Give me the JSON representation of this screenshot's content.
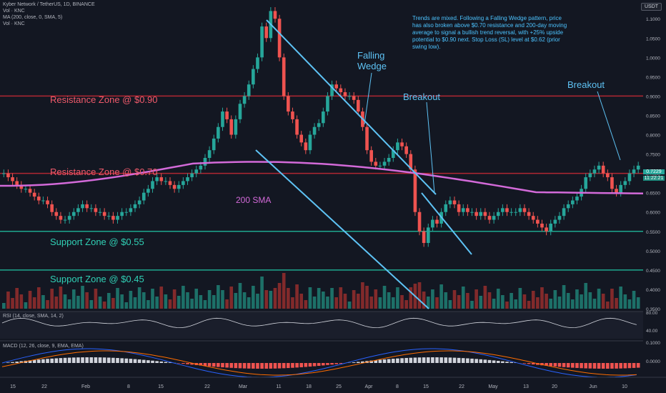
{
  "header": {
    "title": "Kyber Network / TetherUS, 1D, BINANCE",
    "vol": "Vol · KNC",
    "ma": "MA (200, close, 0, SMA, 5)",
    "vol2": "Vol · KNC"
  },
  "currency": "USDT",
  "note": "Trends are mixed. Following a Falling Wedge pattern, price has also broken above $0.70 resistance and 200-day moving average to signal a bullish trend reversal, with +25% upside potential to $0.90 next. Stop Loss (SL) level at $0.62 (prior swing low).",
  "annotations": {
    "falling_wedge_1": "Falling",
    "falling_wedge_2": "Wedge",
    "breakout_1": "Breakout",
    "breakout_2": "Breakout",
    "sma_label": "200 SMA"
  },
  "zones": {
    "res_090": "Resistance Zone @ $0.90",
    "res_070": "Resistance Zone @ $0.70",
    "sup_055": "Support Zone @ $0.55",
    "sup_045": "Support Zone @ $0.45"
  },
  "price_badge": {
    "price": "0.7229",
    "time": "11:22:21"
  },
  "rsi": {
    "label": "RSI (14, close, SMA, 14, 2)",
    "ticks": [
      "80.00",
      "40.00"
    ]
  },
  "macd": {
    "label": "MACD (12, 26, close, 9, EMA, EMA)",
    "ticks": [
      "0.1000",
      "0.0000"
    ]
  },
  "colors": {
    "up": "#26a69a",
    "down": "#ef5350",
    "sma": "#d36ad9",
    "wedge": "#5ec3f5",
    "res": "#b22833",
    "sup": "#1ea88f"
  },
  "chart_data": {
    "type": "candlestick",
    "y_axis_ticks": [
      "1.1000",
      "1.0500",
      "1.0000",
      "0.9500",
      "0.9000",
      "0.8500",
      "0.8000",
      "0.7500",
      "0.7000",
      "0.6500",
      "0.6000",
      "0.5500",
      "0.5000",
      "0.4500",
      "0.4000",
      "0.3500"
    ],
    "ylim": [
      0.35,
      1.13
    ],
    "x_axis_ticks": [
      "15",
      "22",
      "Feb",
      "8",
      "15",
      "22",
      "Mar",
      "11",
      "18",
      "25",
      "Apr",
      "8",
      "15",
      "22",
      "May",
      "13",
      "20",
      "Jun",
      "10"
    ],
    "horizontal_levels": [
      0.9,
      0.7,
      0.55,
      0.45
    ],
    "sma200_value_approx": 0.7,
    "last_price": 0.7229,
    "closes": [
      0.7,
      0.69,
      0.68,
      0.67,
      0.66,
      0.66,
      0.65,
      0.64,
      0.63,
      0.63,
      0.62,
      0.6,
      0.59,
      0.58,
      0.58,
      0.59,
      0.6,
      0.61,
      0.62,
      0.61,
      0.61,
      0.6,
      0.6,
      0.59,
      0.59,
      0.58,
      0.59,
      0.6,
      0.6,
      0.61,
      0.62,
      0.63,
      0.65,
      0.66,
      0.68,
      0.69,
      0.68,
      0.68,
      0.67,
      0.66,
      0.67,
      0.68,
      0.69,
      0.7,
      0.71,
      0.72,
      0.74,
      0.76,
      0.79,
      0.82,
      0.86,
      0.84,
      0.8,
      0.84,
      0.88,
      0.9,
      0.93,
      0.97,
      1.0,
      1.08,
      1.05,
      1.12,
      1.1,
      1.0,
      0.9,
      0.86,
      0.84,
      0.8,
      0.78,
      0.76,
      0.8,
      0.82,
      0.83,
      0.86,
      0.9,
      0.93,
      0.92,
      0.91,
      0.9,
      0.9,
      0.89,
      0.86,
      0.82,
      0.76,
      0.73,
      0.72,
      0.72,
      0.73,
      0.74,
      0.76,
      0.78,
      0.77,
      0.75,
      0.71,
      0.6,
      0.55,
      0.52,
      0.56,
      0.58,
      0.57,
      0.6,
      0.62,
      0.63,
      0.62,
      0.6,
      0.61,
      0.6,
      0.6,
      0.59,
      0.6,
      0.59,
      0.58,
      0.59,
      0.6,
      0.61,
      0.6,
      0.6,
      0.6,
      0.61,
      0.6,
      0.59,
      0.58,
      0.57,
      0.56,
      0.55,
      0.57,
      0.58,
      0.59,
      0.61,
      0.62,
      0.63,
      0.64,
      0.66,
      0.69,
      0.7,
      0.71,
      0.72,
      0.7,
      0.69,
      0.66,
      0.65,
      0.67,
      0.68,
      0.7,
      0.71,
      0.72
    ]
  }
}
